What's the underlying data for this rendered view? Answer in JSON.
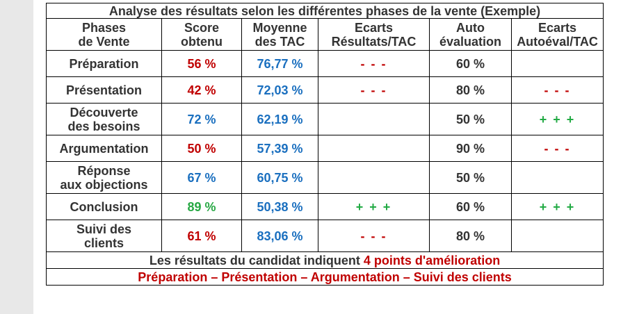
{
  "title": "Analyse des résultats selon les différentes phases de la vente (Exemple)",
  "headers": [
    {
      "line1": "Phases",
      "line2": "de Vente"
    },
    {
      "line1": "Score",
      "line2": "obtenu"
    },
    {
      "line1": "Moyenne",
      "line2": "des TAC"
    },
    {
      "line1": "Ecarts",
      "line2": "Résultats/TAC"
    },
    {
      "line1": "Auto",
      "line2": "évaluation"
    },
    {
      "line1": "Ecarts",
      "line2": "Autoéval/TAC"
    }
  ],
  "rows": [
    {
      "phase1": "Préparation",
      "phase2": "",
      "score": "56 %",
      "score_color": "#c00000",
      "moyenne": "76,77 %",
      "ecart": "- - -",
      "ecart_color": "#c00000",
      "auto": "60 %",
      "ecart_auto": "",
      "ecart_auto_color": ""
    },
    {
      "phase1": "Présentation",
      "phase2": "",
      "score": "42 %",
      "score_color": "#c00000",
      "moyenne": "72,03 %",
      "ecart": "- - -",
      "ecart_color": "#c00000",
      "auto": "80 %",
      "ecart_auto": "- - -",
      "ecart_auto_color": "#c00000"
    },
    {
      "phase1": "Découverte",
      "phase2": "des besoins",
      "score": "72 %",
      "score_color": "#1a6fbf",
      "moyenne": "62,19 %",
      "ecart": "",
      "ecart_color": "",
      "auto": "50 %",
      "ecart_auto": "+ + +",
      "ecart_auto_color": "#22aa44"
    },
    {
      "phase1": "Argumentation",
      "phase2": "",
      "score": "50 %",
      "score_color": "#c00000",
      "moyenne": "57,39 %",
      "ecart": "",
      "ecart_color": "",
      "auto": "90 %",
      "ecart_auto": "- - -",
      "ecart_auto_color": "#c00000"
    },
    {
      "phase1": "Réponse",
      "phase2": "aux objections",
      "score": "67 %",
      "score_color": "#1a6fbf",
      "moyenne": "60,75 %",
      "ecart": "",
      "ecart_color": "",
      "auto": "50 %",
      "ecart_auto": "",
      "ecart_auto_color": ""
    },
    {
      "phase1": "Conclusion",
      "phase2": "",
      "score": "89 %",
      "score_color": "#27a844",
      "moyenne": "50,38 %",
      "ecart": "+ + +",
      "ecart_color": "#22aa44",
      "auto": "60 %",
      "ecart_auto": "+ + +",
      "ecart_auto_color": "#22aa44"
    },
    {
      "phase1": "Suivi des",
      "phase2": "clients",
      "score": "61 %",
      "score_color": "#c00000",
      "moyenne": "83,06 %",
      "ecart": "- - -",
      "ecart_color": "#c00000",
      "auto": "80 %",
      "ecart_auto": "",
      "ecart_auto_color": ""
    }
  ],
  "summary": {
    "prefix": "Les résultats du candidat indiquent ",
    "highlight": "4 points d'amélioration",
    "highlight_color": "#c00000"
  },
  "improvement_list": "Préparation – Présentation – Argumentation – Suivi des clients",
  "colors": {
    "text": "#333333",
    "red": "#c00000",
    "blue": "#1a6fbf",
    "green": "#27a844"
  }
}
